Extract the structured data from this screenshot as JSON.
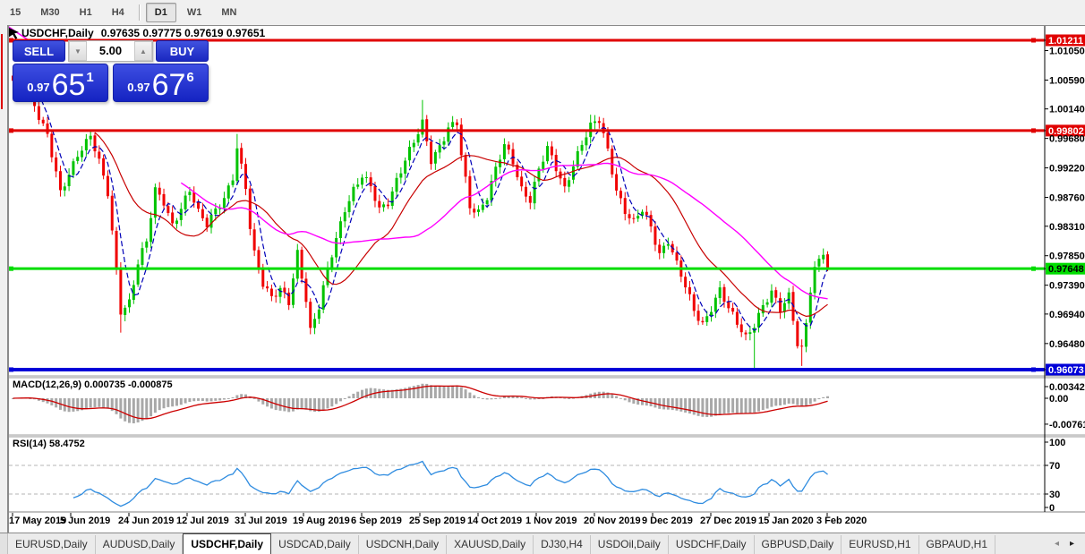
{
  "toolbar": {
    "timeframes": [
      {
        "label": "15",
        "active": false
      },
      {
        "label": "M30",
        "active": false
      },
      {
        "label": "H1",
        "active": false
      },
      {
        "label": "H4",
        "active": false
      },
      {
        "label": "D1",
        "active": true
      },
      {
        "label": "W1",
        "active": false
      },
      {
        "label": "MN",
        "active": false
      }
    ]
  },
  "header": {
    "symbol_period": "USDCHF,Daily",
    "ohlc": "0.97635 0.97775 0.97619 0.97651"
  },
  "trade_panel": {
    "sell_label": "SELL",
    "buy_label": "BUY",
    "volume": "5.00",
    "down_arrow": "▼",
    "up_arrow": "▲",
    "sell_price": {
      "small": "0.97",
      "big": "65",
      "sup": "1"
    },
    "buy_price": {
      "small": "0.97",
      "big": "67",
      "sup": "6"
    }
  },
  "price_axis": {
    "ticks": [
      {
        "label": "1.01211",
        "price": 1.01211,
        "badge": "red"
      },
      {
        "label": "1.01050",
        "price": 1.0105,
        "badge": null
      },
      {
        "label": "1.00590",
        "price": 1.0059,
        "badge": null
      },
      {
        "label": "1.00140",
        "price": 1.0014,
        "badge": null
      },
      {
        "label": "0.99802",
        "price": 0.99802,
        "badge": "red"
      },
      {
        "label": "0.99680",
        "price": 0.9968,
        "badge": null
      },
      {
        "label": "0.99220",
        "price": 0.9922,
        "badge": null
      },
      {
        "label": "0.98760",
        "price": 0.9876,
        "badge": null
      },
      {
        "label": "0.98310",
        "price": 0.9831,
        "badge": null
      },
      {
        "label": "0.97850",
        "price": 0.9785,
        "badge": null
      },
      {
        "label": "0.97648",
        "price": 0.97648,
        "badge": "green"
      },
      {
        "label": "0.97390",
        "price": 0.9739,
        "badge": null
      },
      {
        "label": "0.96940",
        "price": 0.9694,
        "badge": null
      },
      {
        "label": "0.96480",
        "price": 0.9648,
        "badge": null
      },
      {
        "label": "0.96073",
        "price": 0.96073,
        "badge": "blue"
      }
    ],
    "badge_colors": {
      "red": "#e00000",
      "green": "#00dd00",
      "blue": "#0000d8"
    }
  },
  "macd_panel": {
    "label": "MACD(12,26,9) 0.000735 -0.000875",
    "axis": [
      {
        "label": "0.003428",
        "value": 0.003428
      },
      {
        "label": "0.00",
        "value": 0
      },
      {
        "label": "-0.007615",
        "value": -0.007615
      }
    ]
  },
  "rsi_panel": {
    "label": "RSI(14) 58.4752",
    "axis": [
      {
        "label": "100",
        "rsi": 100
      },
      {
        "label": "70",
        "rsi": 70
      },
      {
        "label": "30",
        "rsi": 30
      },
      {
        "label": "0",
        "rsi": 0
      }
    ],
    "levels": [
      70,
      30
    ]
  },
  "date_axis": [
    "17 May 2019",
    "5 Jun 2019",
    "24 Jun 2019",
    "12 Jul 2019",
    "31 Jul 2019",
    "19 Aug 2019",
    "6 Sep 2019",
    "25 Sep 2019",
    "14 Oct 2019",
    "1 Nov 2019",
    "20 Nov 2019",
    "9 Dec 2019",
    "27 Dec 2019",
    "15 Jan 2020",
    "3 Feb 2020"
  ],
  "tabs": {
    "items": [
      {
        "label": "EURUSD,Daily",
        "active": false
      },
      {
        "label": "AUDUSD,Daily",
        "active": false
      },
      {
        "label": "USDCHF,Daily",
        "active": true
      },
      {
        "label": "USDCAD,Daily",
        "active": false
      },
      {
        "label": "USDCNH,Daily",
        "active": false
      },
      {
        "label": "XAUUSD,Daily",
        "active": false
      },
      {
        "label": "DJ30,H4",
        "active": false
      },
      {
        "label": "USDOil,Daily",
        "active": false
      },
      {
        "label": "USDCHF,Daily",
        "active": false
      },
      {
        "label": "GBPUSD,Daily",
        "active": false
      },
      {
        "label": "EURUSD,H1",
        "active": false
      },
      {
        "label": "GBPAUD,H1",
        "active": false
      }
    ],
    "scroll_left": "◂",
    "scroll_right": "▸"
  },
  "chart_data": {
    "type": "candlestick",
    "symbol": "USDCHF",
    "period": "Daily",
    "ohlc_current": {
      "open": 0.97635,
      "high": 0.97775,
      "low": 0.97619,
      "close": 0.97651
    },
    "sell_price": 0.97651,
    "buy_price": 0.97676,
    "ylim": [
      0.9565,
      1.0145
    ],
    "num_candles": 190,
    "colors": {
      "bull": "#00c300",
      "bear": "#f00000",
      "ma_fast": "#0000b8",
      "ma_mid": "#c80000",
      "ma_slow": "#ff00ff",
      "macd_hist": "#a8a8a8",
      "macd_signal": "#cc0000",
      "rsi": "#2f8ce0"
    },
    "horizontal_lines": [
      {
        "price": 1.01211,
        "color": "#e00000",
        "width": 3
      },
      {
        "price": 0.99802,
        "color": "#e00000",
        "width": 3
      },
      {
        "price": 0.97648,
        "color": "#00dd00",
        "width": 3
      },
      {
        "price": 0.96073,
        "color": "#0000d8",
        "width": 4
      }
    ],
    "close_waypoints": [
      [
        0,
        1.0055
      ],
      [
        2,
        1.0075
      ],
      [
        4,
        1.004
      ],
      [
        6,
        1.0005
      ],
      [
        8,
        0.9975
      ],
      [
        11,
        0.988
      ],
      [
        13,
        0.991
      ],
      [
        15,
        0.9945
      ],
      [
        18,
        0.9975
      ],
      [
        20,
        0.993
      ],
      [
        22,
        0.988
      ],
      [
        24,
        0.976
      ],
      [
        25,
        0.97
      ],
      [
        27,
        0.9715
      ],
      [
        29,
        0.9775
      ],
      [
        31,
        0.9805
      ],
      [
        33,
        0.9885
      ],
      [
        35,
        0.987
      ],
      [
        37,
        0.9835
      ],
      [
        39,
        0.986
      ],
      [
        41,
        0.9885
      ],
      [
        43,
        0.985
      ],
      [
        45,
        0.9835
      ],
      [
        47,
        0.986
      ],
      [
        49,
        0.9875
      ],
      [
        51,
        0.9905
      ],
      [
        52,
        0.995
      ],
      [
        54,
        0.989
      ],
      [
        55,
        0.983
      ],
      [
        56,
        0.979
      ],
      [
        58,
        0.9745
      ],
      [
        60,
        0.972
      ],
      [
        62,
        0.973
      ],
      [
        64,
        0.971
      ],
      [
        66,
        0.979
      ],
      [
        68,
        0.972
      ],
      [
        69,
        0.967
      ],
      [
        71,
        0.9705
      ],
      [
        73,
        0.976
      ],
      [
        75,
        0.981
      ],
      [
        77,
        0.986
      ],
      [
        79,
        0.989
      ],
      [
        81,
        0.991
      ],
      [
        83,
        0.989
      ],
      [
        85,
        0.9855
      ],
      [
        87,
        0.987
      ],
      [
        89,
        0.9905
      ],
      [
        91,
        0.9935
      ],
      [
        93,
        0.996
      ],
      [
        95,
        0.999
      ],
      [
        97,
        0.9935
      ],
      [
        99,
        0.9958
      ],
      [
        101,
        0.9985
      ],
      [
        103,
        0.999
      ],
      [
        104,
        0.994
      ],
      [
        106,
        0.986
      ],
      [
        108,
        0.9855
      ],
      [
        110,
        0.988
      ],
      [
        112,
        0.992
      ],
      [
        114,
        0.9955
      ],
      [
        116,
        0.993
      ],
      [
        118,
        0.989
      ],
      [
        120,
        0.9875
      ],
      [
        122,
        0.992
      ],
      [
        124,
        0.995
      ],
      [
        126,
        0.992
      ],
      [
        128,
        0.989
      ],
      [
        130,
        0.993
      ],
      [
        132,
        0.996
      ],
      [
        134,
        0.9985
      ],
      [
        136,
        0.9995
      ],
      [
        138,
        0.995
      ],
      [
        140,
        0.989
      ],
      [
        142,
        0.9855
      ],
      [
        144,
        0.9835
      ],
      [
        146,
        0.9855
      ],
      [
        148,
        0.983
      ],
      [
        150,
        0.979
      ],
      [
        152,
        0.981
      ],
      [
        154,
        0.977
      ],
      [
        156,
        0.9735
      ],
      [
        158,
        0.97
      ],
      [
        160,
        0.968
      ],
      [
        162,
        0.9705
      ],
      [
        164,
        0.973
      ],
      [
        166,
        0.97
      ],
      [
        168,
        0.968
      ],
      [
        170,
        0.966
      ],
      [
        172,
        0.968
      ],
      [
        174,
        0.9705
      ],
      [
        176,
        0.9725
      ],
      [
        178,
        0.97
      ],
      [
        180,
        0.9725
      ],
      [
        181,
        0.969
      ],
      [
        182,
        0.965
      ],
      [
        183,
        0.964
      ],
      [
        184,
        0.968
      ],
      [
        185,
        0.973
      ],
      [
        186,
        0.976
      ],
      [
        187,
        0.9775
      ],
      [
        188,
        0.979
      ],
      [
        189,
        0.97651
      ]
    ],
    "wick_overrides": {
      "25": {
        "low": 0.9665
      },
      "52": {
        "high": 0.9975
      },
      "95": {
        "high": 1.0028
      },
      "134": {
        "high": 1.0005
      },
      "172": {
        "low": 0.9606
      },
      "183": {
        "low": 0.9613
      }
    },
    "moving_averages": [
      {
        "period": 5,
        "style": "dashed"
      },
      {
        "period": 20,
        "style": "solid"
      },
      {
        "period": 40,
        "style": "solid"
      }
    ],
    "macd": {
      "fast": 12,
      "slow": 26,
      "signal": 9,
      "main_value": 0.000735,
      "signal_value": -0.000875
    },
    "rsi": {
      "period": 14,
      "value": 58.4752
    }
  }
}
